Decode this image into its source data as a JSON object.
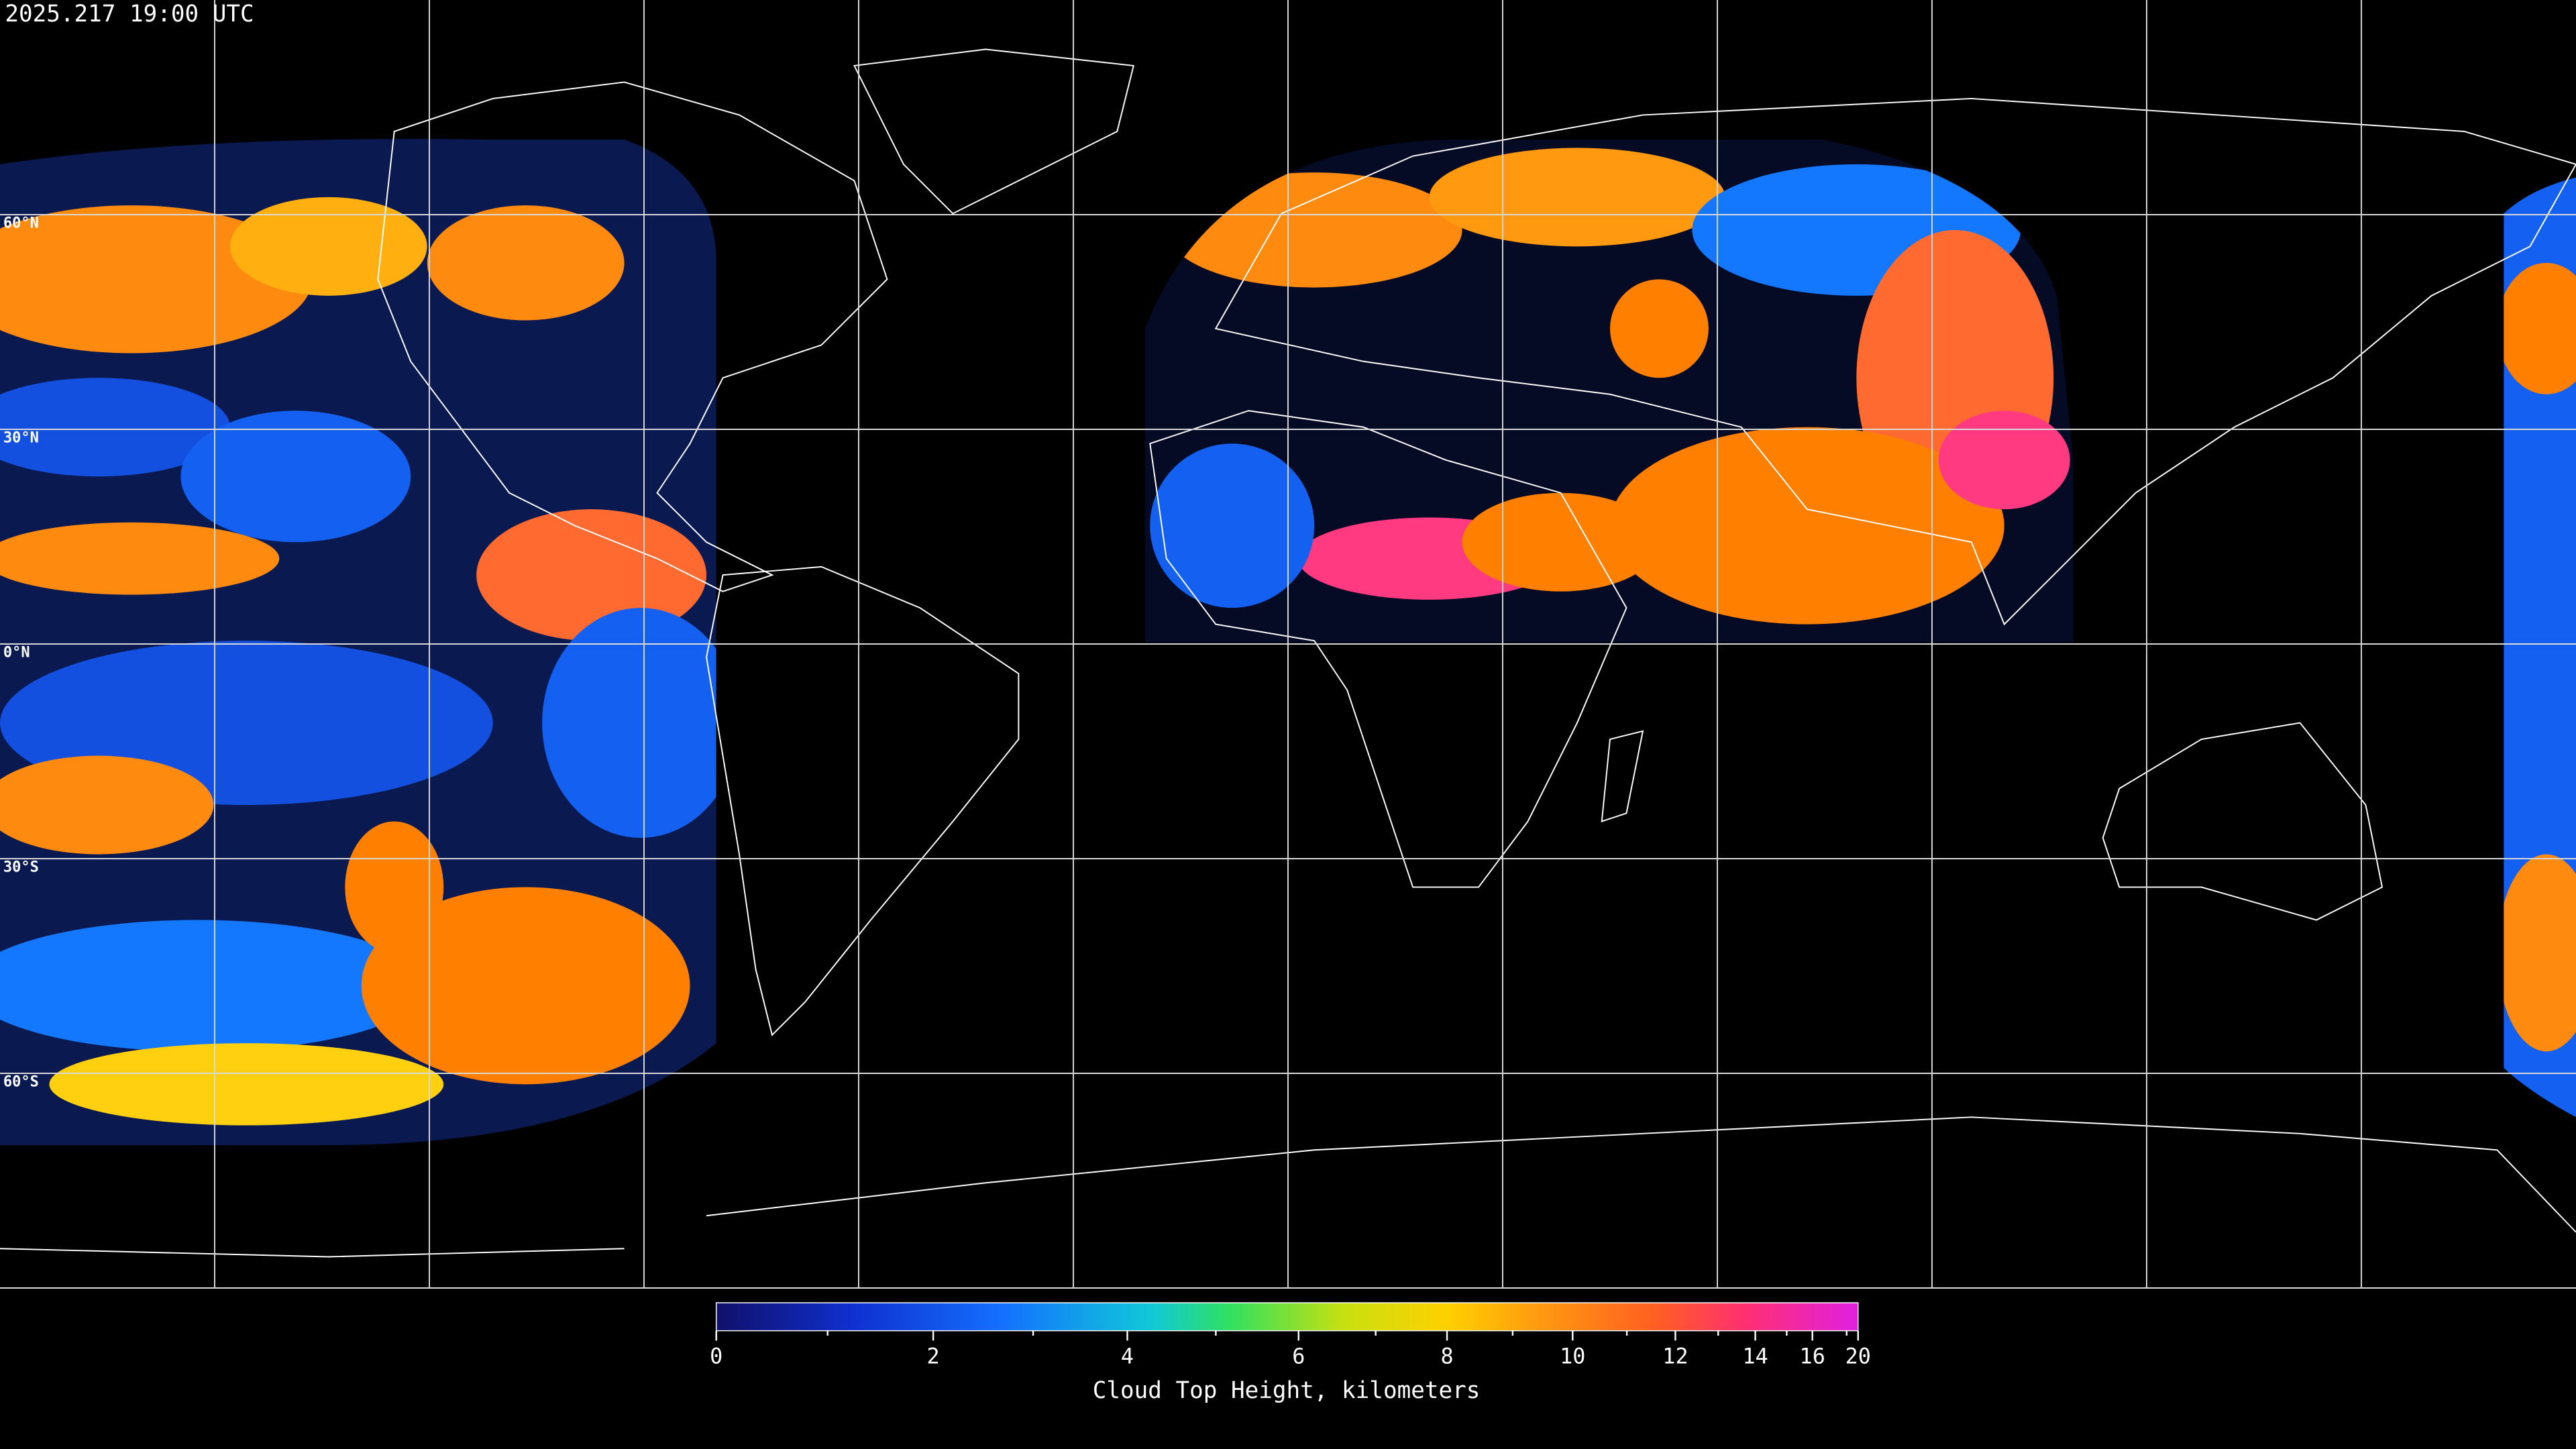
{
  "header": {
    "timestamp": "2025.217 19:00 UTC"
  },
  "map": {
    "lat_ticks": [
      {
        "value": 60,
        "label": "60°N"
      },
      {
        "value": 30,
        "label": "30°N"
      },
      {
        "value": 0,
        "label": "0°N"
      },
      {
        "value": -30,
        "label": "30°S"
      },
      {
        "value": -60,
        "label": "60°S"
      }
    ],
    "lon_gridlines": [
      -150,
      -120,
      -90,
      -60,
      -30,
      0,
      30,
      60,
      90,
      120,
      150
    ],
    "grid_color": "#d8d8d8"
  },
  "colorbar": {
    "label": "Cloud Top Height, kilometers",
    "lim": [
      0,
      20
    ],
    "ticks": [
      0,
      2,
      4,
      6,
      8,
      10,
      12,
      14,
      16,
      20
    ],
    "minor_ticks": [
      1,
      3,
      5,
      7,
      9,
      11,
      13,
      15,
      18
    ],
    "scale": "ease-out"
  }
}
